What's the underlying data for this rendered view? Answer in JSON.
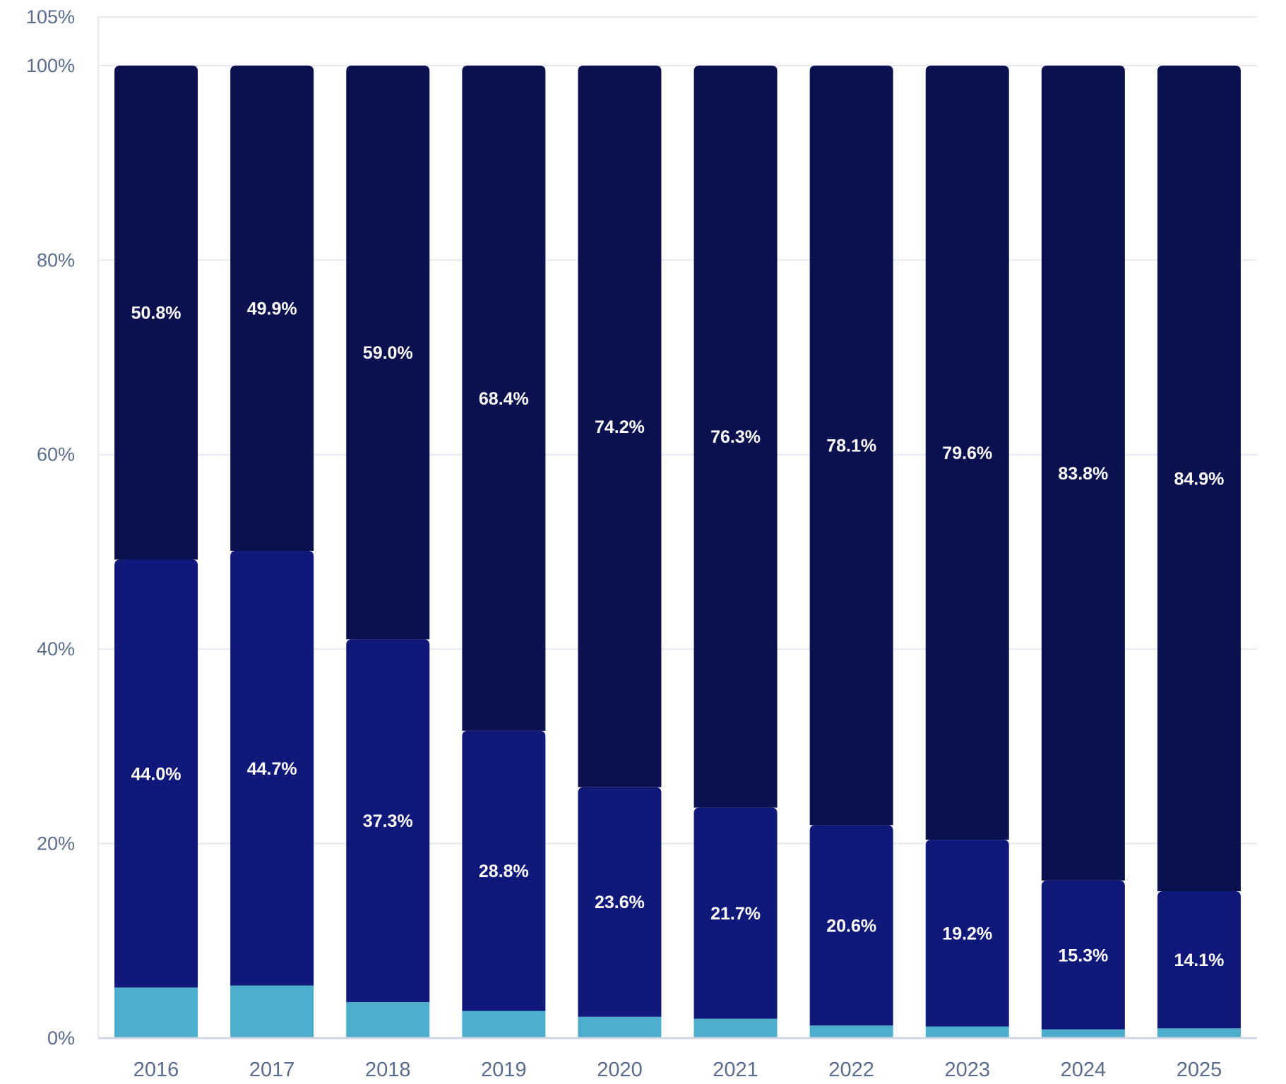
{
  "chart_data": {
    "type": "bar",
    "stacked": true,
    "categories": [
      "2016",
      "2017",
      "2018",
      "2019",
      "2020",
      "2021",
      "2022",
      "2023",
      "2024",
      "2025"
    ],
    "series": [
      {
        "values": [
          5.2,
          5.4,
          3.7,
          2.8,
          2.2,
          2.0,
          1.3,
          1.2,
          0.9,
          1.0
        ],
        "color": "#4cadcd",
        "labels": []
      },
      {
        "values": [
          44.0,
          44.7,
          37.3,
          28.8,
          23.6,
          21.7,
          20.6,
          19.2,
          15.3,
          14.1
        ],
        "color": "#10187a",
        "labels": [
          "44.0%",
          "44.7%",
          "37.3%",
          "28.8%",
          "23.6%",
          "21.7%",
          "20.6%",
          "19.2%",
          "15.3%",
          "14.1%"
        ]
      },
      {
        "values": [
          50.8,
          49.9,
          59.0,
          68.4,
          74.2,
          76.3,
          78.1,
          79.6,
          83.8,
          84.9
        ],
        "color": "#0b114f",
        "labels": [
          "50.8%",
          "49.9%",
          "59.0%",
          "68.4%",
          "74.2%",
          "76.3%",
          "78.1%",
          "79.6%",
          "83.8%",
          "84.9%"
        ]
      }
    ],
    "ylim": [
      0,
      105
    ],
    "y_ticks": [
      0,
      20,
      40,
      60,
      80,
      100,
      105
    ],
    "y_tick_labels": [
      "0%",
      "20%",
      "40%",
      "60%",
      "80%",
      "100%",
      "105%"
    ],
    "grid": true,
    "legend": "none",
    "title": "",
    "xlabel": "",
    "ylabel": ""
  }
}
